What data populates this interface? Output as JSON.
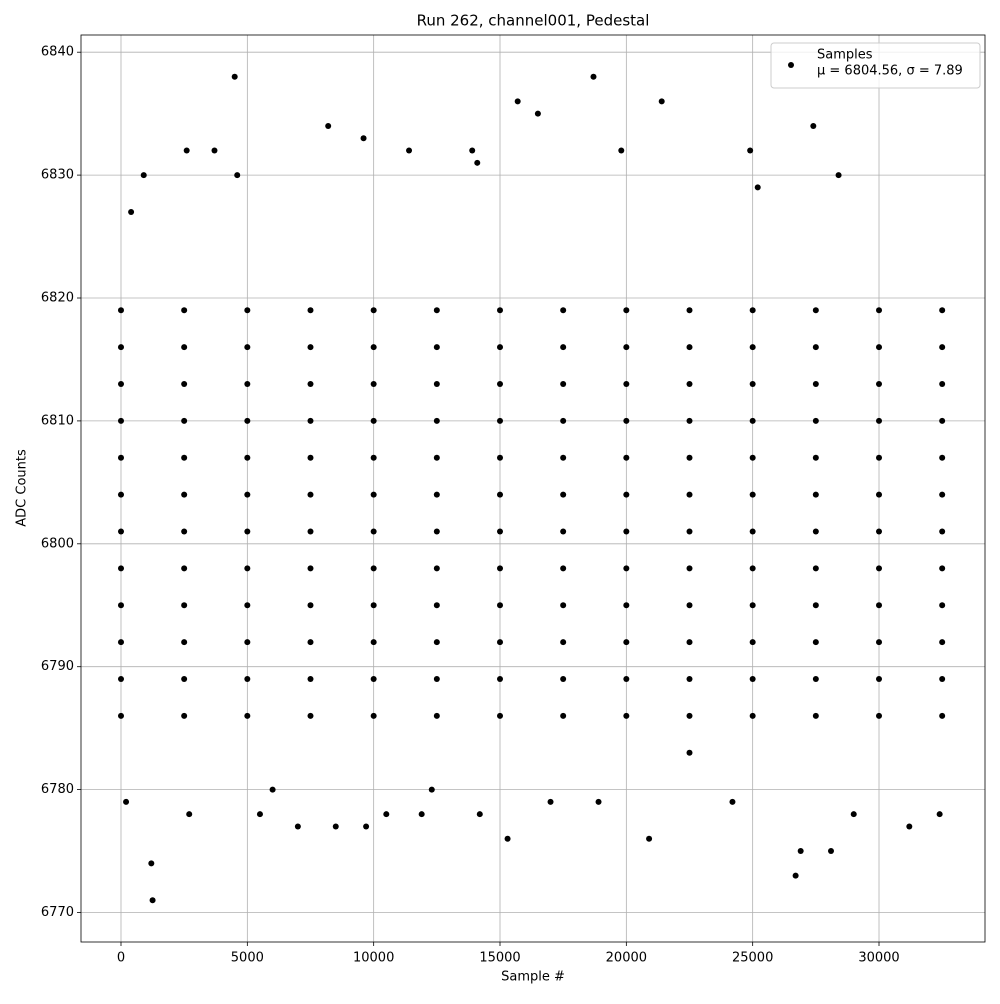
{
  "chart_data": {
    "type": "scatter",
    "title": "Run 262, channel001, Pedestal",
    "x_label": "Sample #",
    "y_label": "ADC Counts",
    "xlim": [
      -1583,
      34195
    ],
    "ylim": [
      6767.6,
      6841.4
    ],
    "xticks": [
      0,
      5000,
      10000,
      15000,
      20000,
      25000,
      30000
    ],
    "yticks": [
      6770,
      6780,
      6790,
      6800,
      6810,
      6820,
      6830,
      6840
    ],
    "grid": true,
    "legend": "upper right",
    "legend_note": "μ = 6804.56, σ = 7.89",
    "series": [
      {
        "name": "Samples",
        "color": "#000000",
        "x": [
          0,
          2500,
          5000,
          7500,
          10000,
          12500,
          15000,
          17500,
          20000,
          22500,
          25000,
          27500,
          30000,
          32500,
          0,
          2500,
          5000,
          7500,
          10000,
          12500,
          15000,
          17500,
          20000,
          22500,
          25000,
          27500,
          30000,
          32500,
          0,
          2500,
          5000,
          7500,
          10000,
          12500,
          15000,
          17500,
          20000,
          22500,
          25000,
          27500,
          30000,
          32500,
          0,
          2500,
          5000,
          7500,
          10000,
          12500,
          15000,
          17500,
          20000,
          22500,
          25000,
          27500,
          30000,
          32500,
          0,
          2500,
          5000,
          7500,
          10000,
          12500,
          15000,
          17500,
          20000,
          22500,
          25000,
          27500,
          30000,
          32500,
          0,
          2500,
          5000,
          7500,
          10000,
          12500,
          15000,
          17500,
          20000,
          22500,
          25000,
          27500,
          30000,
          32500,
          0,
          2500,
          5000,
          7500,
          10000,
          12500,
          15000,
          17500,
          20000,
          22500,
          25000,
          27500,
          30000,
          32500,
          0,
          2500,
          5000,
          7500,
          10000,
          12500,
          15000,
          17500,
          20000,
          22500,
          25000,
          27500,
          30000,
          32500,
          0,
          2500,
          5000,
          7500,
          10000,
          12500,
          15000,
          17500,
          20000,
          22500,
          25000,
          27500,
          30000,
          32500,
          0,
          2500,
          5000,
          7500,
          10000,
          12500,
          15000,
          17500,
          20000,
          22500,
          25000,
          27500,
          30000,
          32500,
          0,
          2500,
          5000,
          7500,
          10000,
          12500,
          15000,
          17500,
          20000,
          22500,
          25000,
          27500,
          30000,
          32500,
          0,
          2500,
          5000,
          7500,
          10000,
          12500,
          15000,
          17500,
          20000,
          22500,
          25000,
          27500,
          30000,
          32500,
          200,
          1200,
          1250,
          900,
          4500,
          2600,
          3700,
          8200,
          9600,
          11400,
          13900,
          15700,
          16500,
          18700,
          19800,
          21400,
          24900,
          27400,
          15300,
          20900,
          26700,
          26900,
          28100,
          8500,
          9700,
          7000,
          31200,
          32400,
          5500,
          2700,
          10500,
          11900,
          14200,
          29000,
          6000,
          12300,
          17000,
          18900,
          22500,
          24200,
          28400,
          25200,
          14100,
          4600,
          400
        ],
        "values": [
          6786,
          6786,
          6786,
          6786,
          6786,
          6786,
          6786,
          6786,
          6786,
          6786,
          6786,
          6786,
          6786,
          6786,
          6789,
          6789,
          6789,
          6789,
          6789,
          6789,
          6789,
          6789,
          6789,
          6789,
          6789,
          6789,
          6789,
          6789,
          6792,
          6792,
          6792,
          6792,
          6792,
          6792,
          6792,
          6792,
          6792,
          6792,
          6792,
          6792,
          6792,
          6792,
          6795,
          6795,
          6795,
          6795,
          6795,
          6795,
          6795,
          6795,
          6795,
          6795,
          6795,
          6795,
          6795,
          6795,
          6798,
          6798,
          6798,
          6798,
          6798,
          6798,
          6798,
          6798,
          6798,
          6798,
          6798,
          6798,
          6798,
          6798,
          6801,
          6801,
          6801,
          6801,
          6801,
          6801,
          6801,
          6801,
          6801,
          6801,
          6801,
          6801,
          6801,
          6801,
          6804,
          6804,
          6804,
          6804,
          6804,
          6804,
          6804,
          6804,
          6804,
          6804,
          6804,
          6804,
          6804,
          6804,
          6807,
          6807,
          6807,
          6807,
          6807,
          6807,
          6807,
          6807,
          6807,
          6807,
          6807,
          6807,
          6807,
          6807,
          6810,
          6810,
          6810,
          6810,
          6810,
          6810,
          6810,
          6810,
          6810,
          6810,
          6810,
          6810,
          6810,
          6810,
          6813,
          6813,
          6813,
          6813,
          6813,
          6813,
          6813,
          6813,
          6813,
          6813,
          6813,
          6813,
          6813,
          6813,
          6816,
          6816,
          6816,
          6816,
          6816,
          6816,
          6816,
          6816,
          6816,
          6816,
          6816,
          6816,
          6816,
          6816,
          6819,
          6819,
          6819,
          6819,
          6819,
          6819,
          6819,
          6819,
          6819,
          6819,
          6819,
          6819,
          6819,
          6819,
          6779,
          6774,
          6771,
          6830,
          6838,
          6832,
          6832,
          6834,
          6833,
          6832,
          6832,
          6836,
          6835,
          6838,
          6832,
          6836,
          6832,
          6834,
          6776,
          6776,
          6773,
          6775,
          6775,
          6777,
          6777,
          6777,
          6777,
          6778,
          6778,
          6778,
          6778,
          6778,
          6778,
          6778,
          6780,
          6780,
          6779,
          6779,
          6783,
          6779,
          6830,
          6829,
          6831,
          6830,
          6827
        ]
      }
    ]
  }
}
